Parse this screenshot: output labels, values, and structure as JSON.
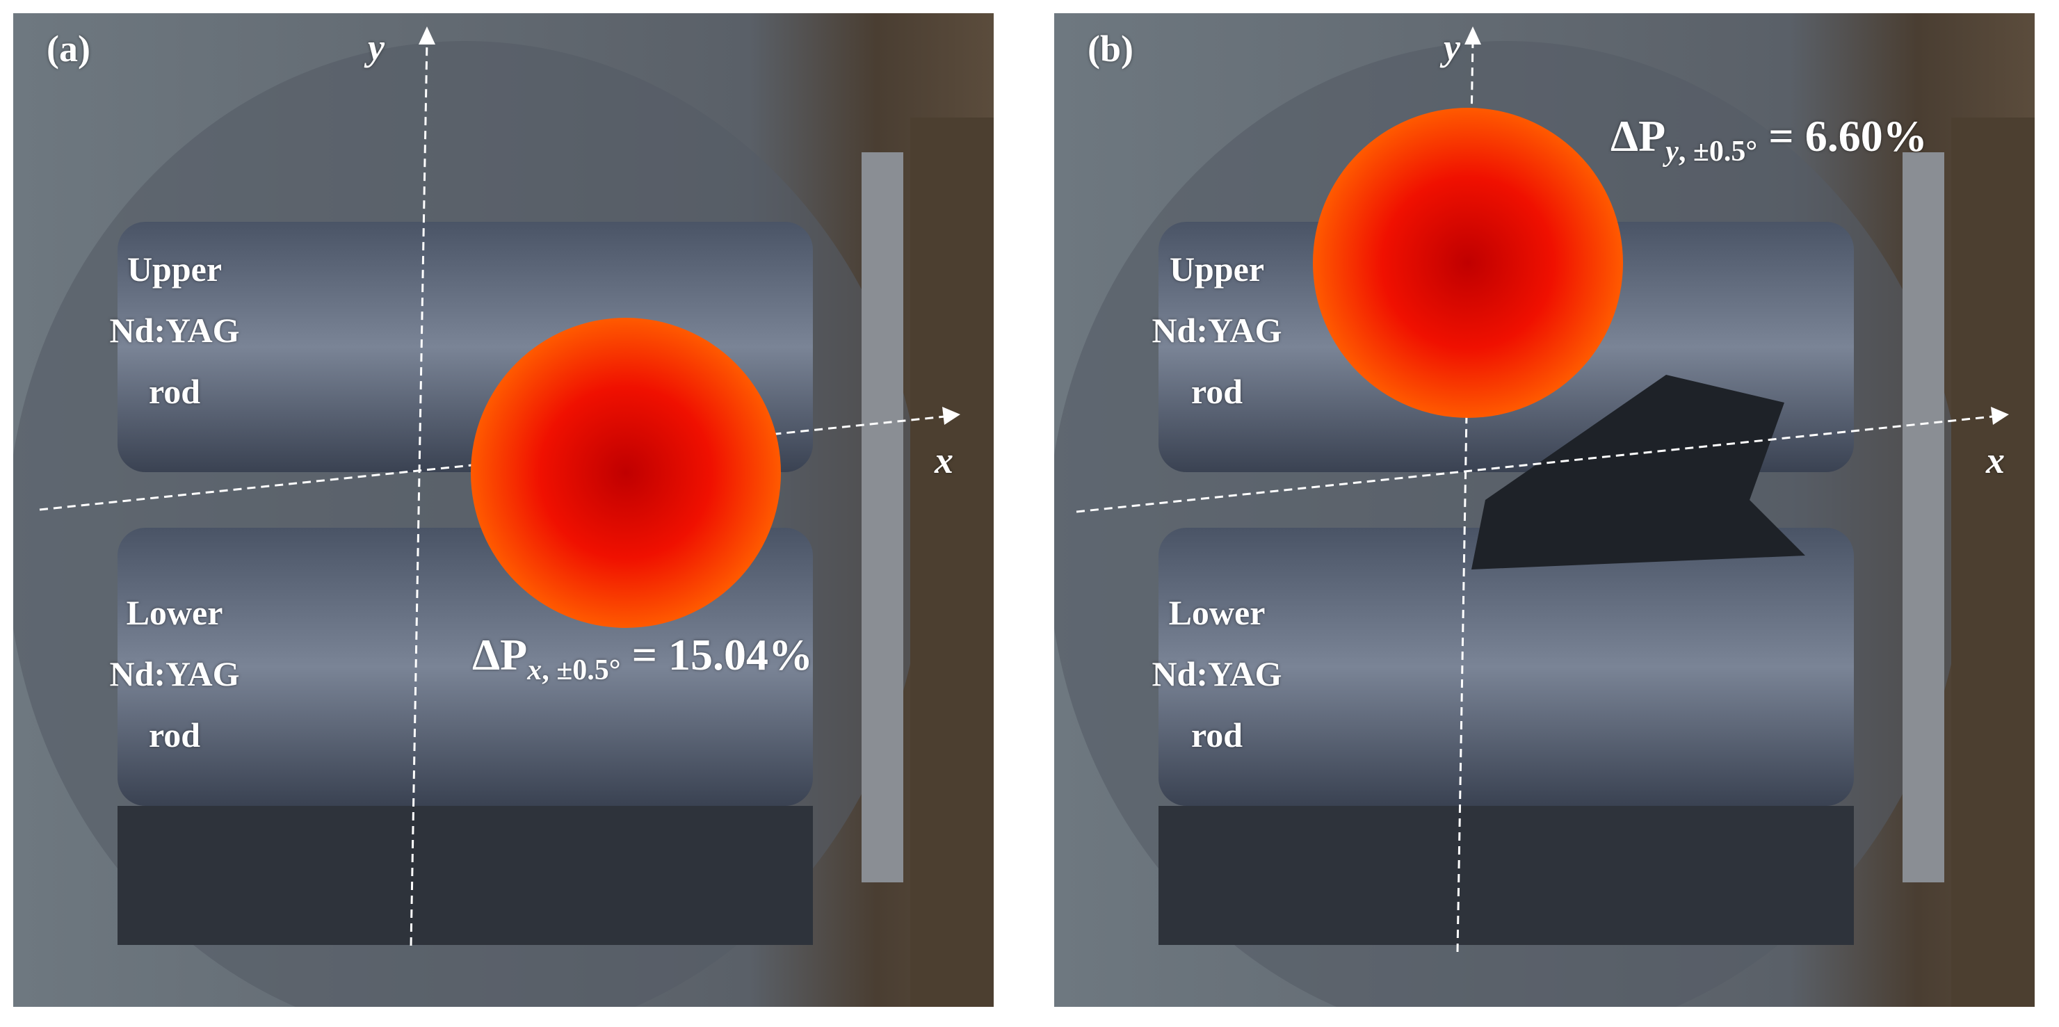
{
  "panels": [
    {
      "label": "(a)",
      "x_axis": "x",
      "y_axis": "y",
      "upper_rod": [
        "Upper",
        "Nd:YAG",
        "rod"
      ],
      "lower_rod": [
        "Lower",
        "Nd:YAG",
        "rod"
      ],
      "measurement": {
        "symbol": "ΔP",
        "axis": "x",
        "subscript": ", ±0.5°",
        "value": "= 15.04%"
      }
    },
    {
      "label": "(b)",
      "x_axis": "x",
      "y_axis": "y",
      "upper_rod": [
        "Upper",
        "Nd:YAG",
        "rod"
      ],
      "lower_rod": [
        "Lower",
        "Nd:YAG",
        "rod"
      ],
      "measurement": {
        "symbol": "ΔP",
        "axis": "y",
        "subscript": ", ±0.5°",
        "value": "= 6.60%"
      }
    }
  ],
  "colors": {
    "spot_center": "#c80000",
    "spot_edge": "#ff5a00",
    "axis_lines": "#ffffff"
  }
}
